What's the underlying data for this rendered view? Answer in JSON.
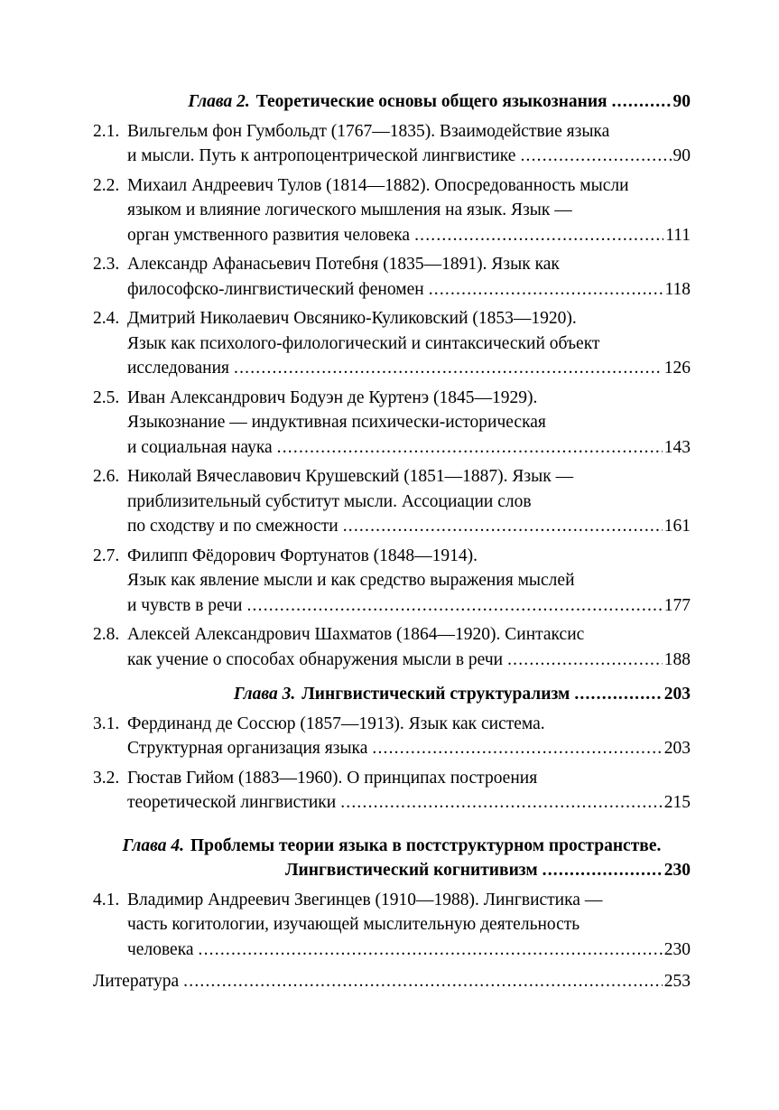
{
  "toc": {
    "chapters": [
      {
        "heading": {
          "label": "Глава 2.",
          "title": "Теоретические основы общего языкознания",
          "page": "90"
        },
        "entries": [
          {
            "num": "2.1.",
            "lines": [
              "Вильгельм фон Гумбольдт (1767—1835). Взаимодействие языка",
              "и мысли. Путь к антропоцентрической лингвистике"
            ],
            "page": "90"
          },
          {
            "num": "2.2.",
            "lines": [
              "Михаил Андреевич Тулов (1814—1882). Опосредованность мысли",
              "языком и влияние логического мышления на язык. Язык —",
              "орган умственного развития человека"
            ],
            "page": "111"
          },
          {
            "num": "2.3.",
            "lines": [
              "Александр Афанасьевич Потебня (1835—1891). Язык как",
              "философско-лингвистический феномен"
            ],
            "page": "118"
          },
          {
            "num": "2.4.",
            "lines": [
              "Дмитрий Николаевич Овсянико-Куликовский (1853—1920).",
              "Язык как психолого-филологический и синтаксический объект",
              "исследования"
            ],
            "page": "126"
          },
          {
            "num": "2.5.",
            "lines": [
              "Иван Александрович Бодуэн де Куртенэ (1845—1929).",
              "Языкознание — индуктивная психически-историческая",
              "и социальная наука"
            ],
            "page": "143"
          },
          {
            "num": "2.6.",
            "lines": [
              "Николай Вячеславович Крушевский (1851—1887). Язык —",
              "приблизительный субститут мысли. Ассоциации слов",
              "по сходству и по смежности"
            ],
            "page": "161"
          },
          {
            "num": "2.7.",
            "lines": [
              "Филипп Фёдорович Фортунатов (1848—1914).",
              "Язык как явление мысли и как средство выражения мыслей",
              "и чувств в речи"
            ],
            "page": "177"
          },
          {
            "num": "2.8.",
            "lines": [
              "Алексей Александрович Шахматов (1864—1920). Синтаксис",
              "как учение о способах обнаружения мысли в речи"
            ],
            "page": "188"
          }
        ]
      },
      {
        "heading": {
          "label": "Глава 3.",
          "title": "Лингвистический структурализм",
          "page": "203"
        },
        "entries": [
          {
            "num": "3.1.",
            "lines": [
              "Фердинанд де Соссюр (1857—1913). Язык как система.",
              "Структурная организация языка"
            ],
            "page": "203"
          },
          {
            "num": "3.2.",
            "lines": [
              "Гюстав Гийом (1883—1960). О принципах построения",
              "теоретической лингвистики"
            ],
            "page": "215"
          }
        ]
      },
      {
        "heading": {
          "label": "Глава 4.",
          "title": "Проблемы теории языка в постструктурном пространстве.",
          "title_line2": "Лингвистический когнитивизм",
          "page": "230"
        },
        "entries": [
          {
            "num": "4.1.",
            "lines": [
              "Владимир Андреевич Звегинцев (1910—1988). Лингвистика —",
              "часть когитологии, изучающей мыслительную деятельность",
              "человека"
            ],
            "page": "230"
          }
        ]
      }
    ],
    "literature": {
      "label": "Литература",
      "page": "253"
    }
  }
}
